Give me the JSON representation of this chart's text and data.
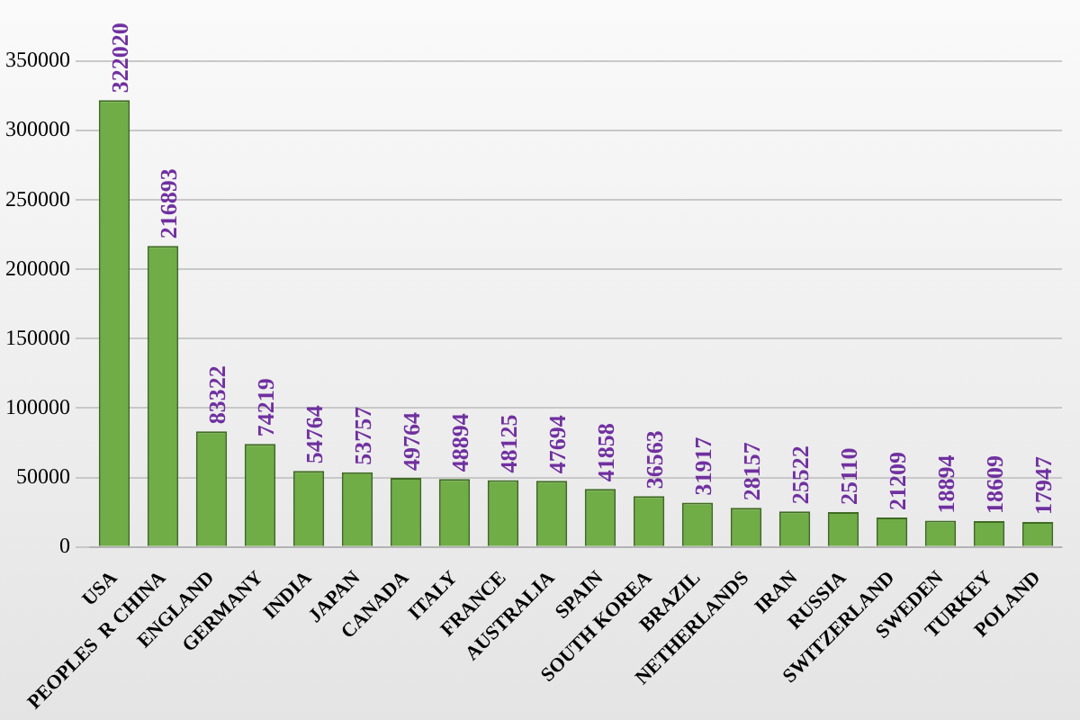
{
  "chart_data": {
    "type": "bar",
    "categories": [
      "USA",
      "PEOPLES  R CHINA",
      "ENGLAND",
      "GERMANY",
      "INDIA",
      "JAPAN",
      "CANADA",
      "ITALY",
      "FRANCE",
      "AUSTRALIA",
      "SPAIN",
      "SOUTH KOREA",
      "BRAZIL",
      "NETHERLANDS",
      "IRAN",
      "RUSSIA",
      "SWITZERLAND",
      "SWEDEN",
      "TURKEY",
      "POLAND"
    ],
    "values": [
      322020,
      216893,
      83322,
      74219,
      54764,
      53757,
      49764,
      48894,
      48125,
      47694,
      41858,
      36563,
      31917,
      28157,
      25522,
      25110,
      21209,
      18894,
      18609,
      17947
    ],
    "color": "#70ad47",
    "ylim": [
      0,
      350000
    ],
    "yticks": [
      0,
      50000,
      100000,
      150000,
      200000,
      250000,
      300000,
      350000
    ],
    "grid": "y",
    "data_labels": true
  }
}
